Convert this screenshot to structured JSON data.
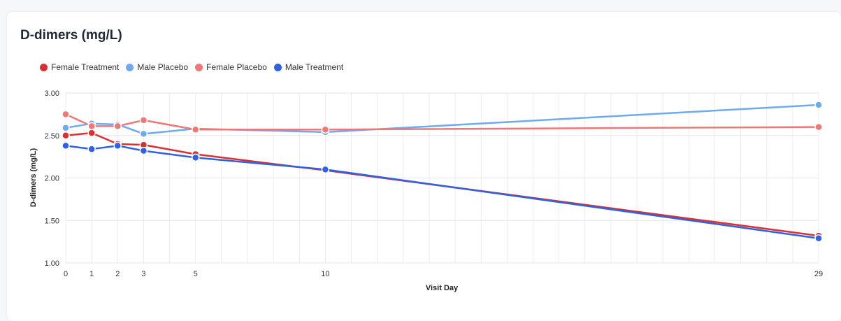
{
  "chart_data": {
    "type": "line",
    "title": "D-dimers (mg/L)",
    "xlabel": "Visit Day",
    "ylabel": "D-dimers (mg/L)",
    "xlim": [
      0,
      29
    ],
    "ylim": [
      1.0,
      3.0
    ],
    "x_ticks": [
      "0",
      "1",
      "2",
      "3",
      "5",
      "10",
      "29"
    ],
    "y_ticks": [
      "3.00",
      "2.50",
      "2.00",
      "1.50",
      "1.00"
    ],
    "grid": true,
    "legend_position": "top-left",
    "series": [
      {
        "name": "Female Treatment",
        "color": "#dc2f2f",
        "points": [
          [
            0,
            2.5
          ],
          [
            1,
            2.53
          ],
          [
            2,
            2.4
          ],
          [
            3,
            2.39
          ],
          [
            5,
            2.28
          ],
          [
            10,
            2.09
          ],
          [
            29,
            1.32
          ]
        ]
      },
      {
        "name": "Male Placebo",
        "color": "#6eaaf0",
        "points": [
          [
            0,
            2.59
          ],
          [
            1,
            2.64
          ],
          [
            2,
            2.63
          ],
          [
            3,
            2.52
          ],
          [
            5,
            2.58
          ],
          [
            10,
            2.54
          ],
          [
            29,
            2.86
          ]
        ]
      },
      {
        "name": "Female Placebo",
        "color": "#f07777",
        "points": [
          [
            0,
            2.75
          ],
          [
            1,
            2.61
          ],
          [
            2,
            2.61
          ],
          [
            3,
            2.68
          ],
          [
            5,
            2.57
          ],
          [
            10,
            2.57
          ],
          [
            29,
            2.6
          ]
        ]
      },
      {
        "name": "Male Treatment",
        "color": "#2f62e0",
        "points": [
          [
            0,
            2.38
          ],
          [
            1,
            2.34
          ],
          [
            2,
            2.38
          ],
          [
            3,
            2.32
          ],
          [
            5,
            2.24
          ],
          [
            10,
            2.1
          ],
          [
            29,
            1.29
          ]
        ]
      }
    ]
  }
}
